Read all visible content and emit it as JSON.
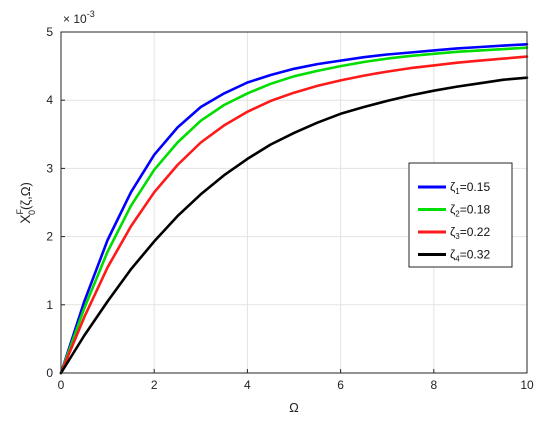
{
  "chart_data": {
    "type": "line",
    "xlabel": "Ω",
    "ylabel": {
      "base": "X",
      "sub": "0",
      "sup": "F",
      "args": "(ζ,Ω)"
    },
    "exponent_label": "× 10",
    "exponent_power": "-3",
    "xlim": [
      0,
      10
    ],
    "ylim": [
      0,
      5
    ],
    "grid": true,
    "legend_position": "right",
    "x_ticks": [
      "0",
      "2",
      "4",
      "6",
      "8",
      "10"
    ],
    "y_ticks": [
      "0",
      "1",
      "2",
      "3",
      "4",
      "5"
    ],
    "x": [
      0,
      0.5,
      1,
      1.5,
      2,
      2.5,
      3,
      3.5,
      4,
      4.5,
      5,
      5.5,
      6,
      6.5,
      7,
      7.5,
      8,
      8.5,
      9,
      9.5,
      10
    ],
    "series": [
      {
        "name": "ζ1=0.15",
        "name_greek": "ζ",
        "name_sub": "1",
        "name_value": "=0.15",
        "color": "#0000ff",
        "values": [
          0,
          1.05,
          1.95,
          2.65,
          3.2,
          3.6,
          3.9,
          4.1,
          4.26,
          4.37,
          4.46,
          4.53,
          4.58,
          4.63,
          4.67,
          4.7,
          4.73,
          4.76,
          4.78,
          4.8,
          4.82
        ]
      },
      {
        "name": "ζ2=0.18",
        "name_greek": "ζ",
        "name_sub": "2",
        "name_value": "=0.18",
        "color": "#00dd00",
        "values": [
          0,
          0.95,
          1.78,
          2.45,
          2.98,
          3.38,
          3.7,
          3.93,
          4.1,
          4.24,
          4.35,
          4.43,
          4.5,
          4.56,
          4.61,
          4.65,
          4.68,
          4.71,
          4.73,
          4.75,
          4.77
        ]
      },
      {
        "name": "ζ3=0.22",
        "name_greek": "ζ",
        "name_sub": "3",
        "name_value": "=0.22",
        "color": "#ff1a1a",
        "values": [
          0,
          0.82,
          1.55,
          2.15,
          2.65,
          3.05,
          3.38,
          3.63,
          3.83,
          3.99,
          4.11,
          4.21,
          4.29,
          4.36,
          4.42,
          4.47,
          4.51,
          4.55,
          4.58,
          4.61,
          4.64
        ]
      },
      {
        "name": "ζ4=0.32",
        "name_greek": "ζ",
        "name_sub": "4",
        "name_value": "=0.32",
        "color": "#000000",
        "values": [
          0,
          0.55,
          1.05,
          1.52,
          1.93,
          2.3,
          2.62,
          2.9,
          3.14,
          3.35,
          3.52,
          3.67,
          3.8,
          3.9,
          3.99,
          4.07,
          4.14,
          4.2,
          4.25,
          4.3,
          4.33
        ]
      }
    ]
  }
}
